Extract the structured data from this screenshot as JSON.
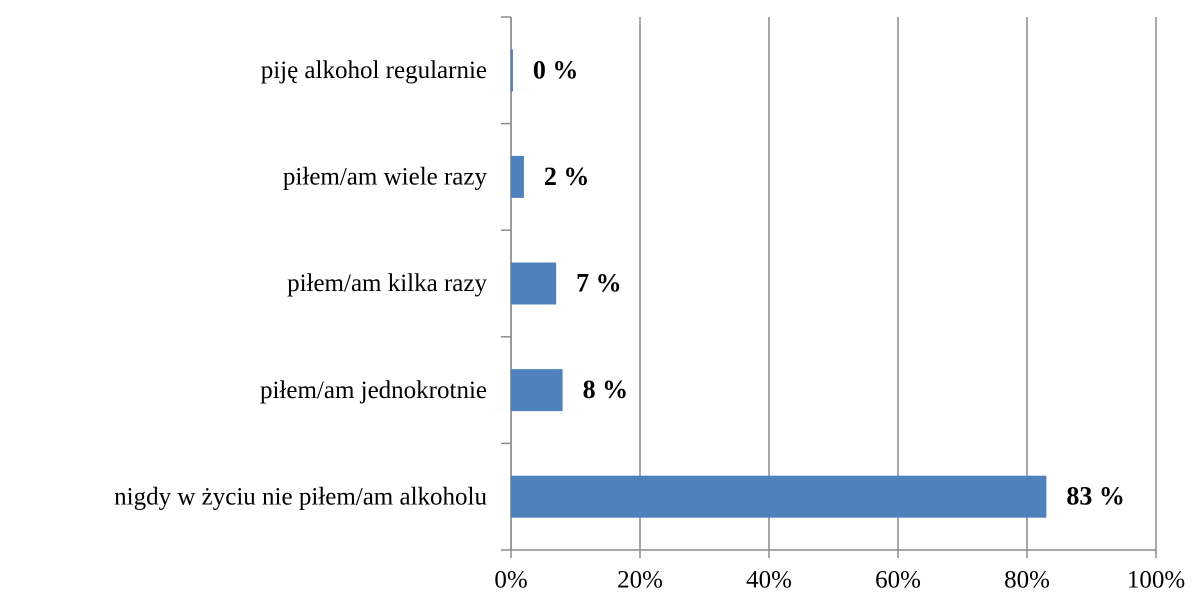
{
  "chart_data": {
    "type": "bar",
    "orientation": "horizontal",
    "categories": [
      "piję alkohol regularnie",
      "piłem/am wiele razy",
      "piłem/am kilka razy",
      "piłem/am jednokrotnie",
      "nigdy w życiu nie piłem/am alkoholu"
    ],
    "values": [
      0.3,
      2,
      7,
      8,
      83
    ],
    "value_labels": [
      "0 %",
      "2 %",
      "7 %",
      "8 %",
      "83 %"
    ],
    "color": "#4f81bd",
    "xlim": [
      0,
      100
    ],
    "xticks": [
      {
        "value": 0,
        "label": "0%"
      },
      {
        "value": 20,
        "label": "20%"
      },
      {
        "value": 40,
        "label": "40%"
      },
      {
        "value": 60,
        "label": "60%"
      },
      {
        "value": 80,
        "label": "80%"
      },
      {
        "value": 100,
        "label": "100%"
      }
    ],
    "grid": true
  }
}
